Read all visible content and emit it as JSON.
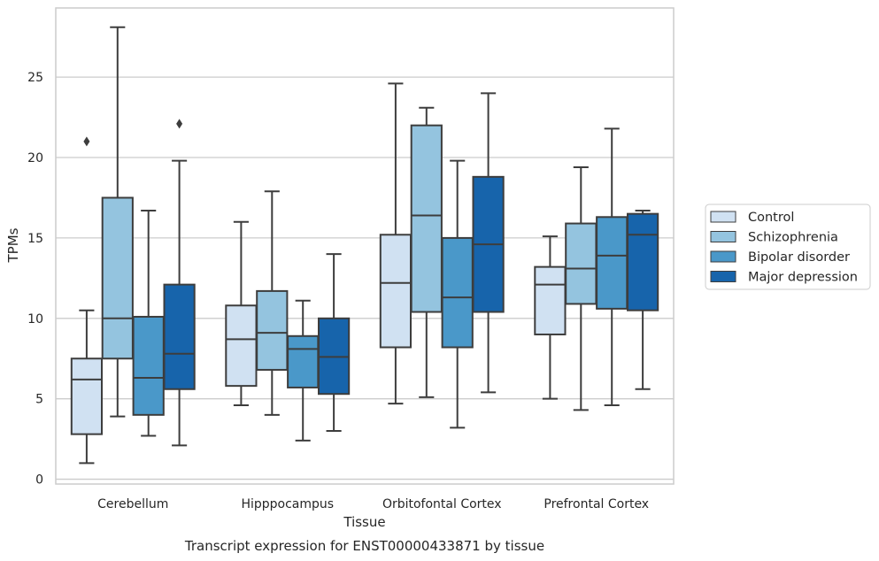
{
  "chart_data": {
    "type": "box",
    "title": "",
    "caption": "Transcript expression for ENST00000433871 by tissue",
    "xlabel": "Tissue",
    "ylabel": "TPMs",
    "ylim": [
      -0.3,
      29.3
    ],
    "yticks": [
      0,
      5,
      10,
      15,
      20,
      25
    ],
    "grid": true,
    "legend_position": "right",
    "categories": [
      "Cerebellum",
      "Hipppocampus",
      "Orbitofontal Cortex",
      "Prefrontal Cortex"
    ],
    "series": [
      {
        "name": "Control",
        "color": "#d0e1f2",
        "boxes": [
          {
            "whisker_low": 1.0,
            "q1": 2.8,
            "median": 6.2,
            "q3": 7.5,
            "whisker_high": 10.5,
            "outliers": [
              21.0
            ]
          },
          {
            "whisker_low": 4.6,
            "q1": 5.8,
            "median": 8.7,
            "q3": 10.8,
            "whisker_high": 16.0,
            "outliers": []
          },
          {
            "whisker_low": 4.7,
            "q1": 8.2,
            "median": 12.2,
            "q3": 15.2,
            "whisker_high": 24.6,
            "outliers": []
          },
          {
            "whisker_low": 5.0,
            "q1": 9.0,
            "median": 12.1,
            "q3": 13.2,
            "whisker_high": 15.1,
            "outliers": []
          }
        ]
      },
      {
        "name": "Schizophrenia",
        "color": "#94c4df",
        "boxes": [
          {
            "whisker_low": 3.9,
            "q1": 7.5,
            "median": 10.0,
            "q3": 17.5,
            "whisker_high": 28.1,
            "outliers": []
          },
          {
            "whisker_low": 4.0,
            "q1": 6.8,
            "median": 9.1,
            "q3": 11.7,
            "whisker_high": 17.9,
            "outliers": []
          },
          {
            "whisker_low": 5.1,
            "q1": 10.4,
            "median": 16.4,
            "q3": 22.0,
            "whisker_high": 23.1,
            "outliers": []
          },
          {
            "whisker_low": 4.3,
            "q1": 10.9,
            "median": 13.1,
            "q3": 15.9,
            "whisker_high": 19.4,
            "outliers": []
          }
        ]
      },
      {
        "name": "Bipolar disorder",
        "color": "#4a98c9",
        "boxes": [
          {
            "whisker_low": 2.7,
            "q1": 4.0,
            "median": 6.3,
            "q3": 10.1,
            "whisker_high": 16.7,
            "outliers": []
          },
          {
            "whisker_low": 2.4,
            "q1": 5.7,
            "median": 8.1,
            "q3": 8.9,
            "whisker_high": 11.1,
            "outliers": []
          },
          {
            "whisker_low": 3.2,
            "q1": 8.2,
            "median": 11.3,
            "q3": 15.0,
            "whisker_high": 19.8,
            "outliers": []
          },
          {
            "whisker_low": 4.6,
            "q1": 10.6,
            "median": 13.9,
            "q3": 16.3,
            "whisker_high": 21.8,
            "outliers": []
          }
        ]
      },
      {
        "name": "Major depression",
        "color": "#1764ab",
        "boxes": [
          {
            "whisker_low": 2.1,
            "q1": 5.6,
            "median": 7.8,
            "q3": 12.1,
            "whisker_high": 19.8,
            "outliers": [
              22.1
            ]
          },
          {
            "whisker_low": 3.0,
            "q1": 5.3,
            "median": 7.6,
            "q3": 10.0,
            "whisker_high": 14.0,
            "outliers": []
          },
          {
            "whisker_low": 5.4,
            "q1": 10.4,
            "median": 14.6,
            "q3": 18.8,
            "whisker_high": 24.0,
            "outliers": []
          },
          {
            "whisker_low": 5.6,
            "q1": 10.5,
            "median": 15.2,
            "q3": 16.5,
            "whisker_high": 16.7,
            "outliers": []
          }
        ]
      }
    ]
  }
}
